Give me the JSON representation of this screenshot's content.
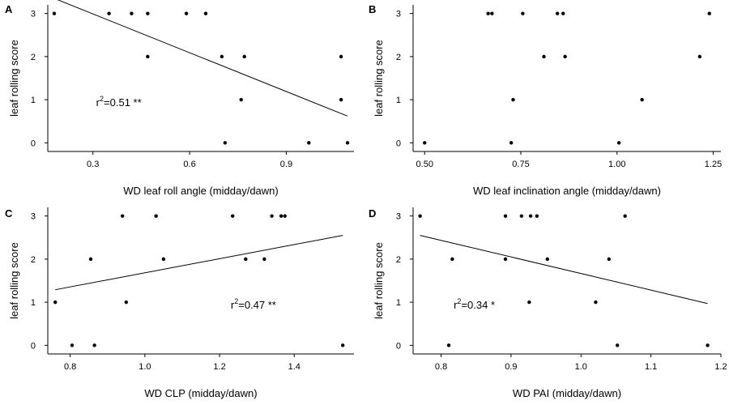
{
  "chart_data": [
    {
      "panel": "A",
      "type": "scatter",
      "xlabel": "WD leaf roll angle (midday/dawn)",
      "ylabel": "leaf rolling score",
      "xlim": [
        0.16,
        1.11
      ],
      "ylim": [
        -0.2,
        3.2
      ],
      "xticks": [
        0.3,
        0.6,
        0.9
      ],
      "xtick_labels": [
        "0.3",
        "0.6",
        "0.9"
      ],
      "yticks": [
        0,
        1,
        2,
        3
      ],
      "ytick_labels": [
        "0",
        "1",
        "2",
        "3"
      ],
      "points": [
        {
          "x": 0.18,
          "y": 3
        },
        {
          "x": 0.35,
          "y": 3
        },
        {
          "x": 0.42,
          "y": 3
        },
        {
          "x": 0.47,
          "y": 3
        },
        {
          "x": 0.59,
          "y": 3
        },
        {
          "x": 0.65,
          "y": 3
        },
        {
          "x": 0.47,
          "y": 2
        },
        {
          "x": 0.7,
          "y": 2
        },
        {
          "x": 0.77,
          "y": 2
        },
        {
          "x": 1.07,
          "y": 2
        },
        {
          "x": 0.76,
          "y": 1
        },
        {
          "x": 1.07,
          "y": 1
        },
        {
          "x": 0.71,
          "y": 0
        },
        {
          "x": 0.97,
          "y": 0
        },
        {
          "x": 1.09,
          "y": 0
        }
      ],
      "fit": {
        "x": [
          0.18,
          1.09
        ],
        "y": [
          3.35,
          0.62
        ]
      },
      "annotation": {
        "text_base": "r",
        "superscript": "2",
        "text_rest": "=0.51 **",
        "x": 0.31,
        "y": 0.95
      }
    },
    {
      "panel": "B",
      "type": "scatter",
      "xlabel": "WD leaf inclination angle (midday/dawn)",
      "ylabel": "leaf rolling score",
      "xlim": [
        0.47,
        1.27
      ],
      "ylim": [
        -0.2,
        3.2
      ],
      "xticks": [
        0.5,
        0.75,
        1.0,
        1.25
      ],
      "xtick_labels": [
        "0.50",
        "0.75",
        "1.00",
        "1.25"
      ],
      "yticks": [
        0,
        1,
        2,
        3
      ],
      "ytick_labels": [
        "0",
        "1",
        "2",
        "3"
      ],
      "points": [
        {
          "x": 0.665,
          "y": 3
        },
        {
          "x": 0.675,
          "y": 3
        },
        {
          "x": 0.755,
          "y": 3
        },
        {
          "x": 0.845,
          "y": 3
        },
        {
          "x": 0.86,
          "y": 3
        },
        {
          "x": 1.24,
          "y": 3
        },
        {
          "x": 0.81,
          "y": 2
        },
        {
          "x": 0.865,
          "y": 2
        },
        {
          "x": 1.215,
          "y": 2
        },
        {
          "x": 0.73,
          "y": 1
        },
        {
          "x": 1.065,
          "y": 1
        },
        {
          "x": 0.5,
          "y": 0
        },
        {
          "x": 0.725,
          "y": 0
        },
        {
          "x": 1.005,
          "y": 0
        }
      ]
    },
    {
      "panel": "C",
      "type": "scatter",
      "xlabel": "WD CLP (midday/dawn)",
      "ylabel": "leaf rolling score",
      "xlim": [
        0.74,
        1.56
      ],
      "ylim": [
        -0.2,
        3.2
      ],
      "xticks": [
        0.8,
        1.0,
        1.2,
        1.4
      ],
      "xtick_labels": [
        "0.8",
        "1.0",
        "1.2",
        "1.4"
      ],
      "yticks": [
        0,
        1,
        2,
        3
      ],
      "ytick_labels": [
        "0",
        "1",
        "2",
        "3"
      ],
      "points": [
        {
          "x": 0.94,
          "y": 3
        },
        {
          "x": 1.03,
          "y": 3
        },
        {
          "x": 1.235,
          "y": 3
        },
        {
          "x": 1.34,
          "y": 3
        },
        {
          "x": 1.365,
          "y": 3
        },
        {
          "x": 1.375,
          "y": 3
        },
        {
          "x": 0.855,
          "y": 2
        },
        {
          "x": 1.05,
          "y": 2
        },
        {
          "x": 1.27,
          "y": 2
        },
        {
          "x": 1.32,
          "y": 2
        },
        {
          "x": 0.76,
          "y": 1
        },
        {
          "x": 0.95,
          "y": 1
        },
        {
          "x": 0.805,
          "y": 0
        },
        {
          "x": 0.865,
          "y": 0
        },
        {
          "x": 1.53,
          "y": 0
        }
      ],
      "fit": {
        "x": [
          0.76,
          1.53
        ],
        "y": [
          1.29,
          2.55
        ]
      },
      "annotation": {
        "text_base": "r",
        "superscript": "2",
        "text_rest": "=0.47 **",
        "x": 1.23,
        "y": 0.95
      }
    },
    {
      "panel": "D",
      "type": "scatter",
      "xlabel": "WD PAI (midday/dawn)",
      "ylabel": "leaf rolling score",
      "xlim": [
        0.76,
        1.2
      ],
      "ylim": [
        -0.2,
        3.2
      ],
      "xticks": [
        0.8,
        0.9,
        1.0,
        1.1,
        1.2
      ],
      "xtick_labels": [
        "0.8",
        "0.9",
        "1.0",
        "1.1",
        "1.2"
      ],
      "yticks": [
        0,
        1,
        2,
        3
      ],
      "ytick_labels": [
        "0",
        "1",
        "2",
        "3"
      ],
      "points": [
        {
          "x": 0.77,
          "y": 3
        },
        {
          "x": 0.892,
          "y": 3
        },
        {
          "x": 0.915,
          "y": 3
        },
        {
          "x": 0.928,
          "y": 3
        },
        {
          "x": 0.937,
          "y": 3
        },
        {
          "x": 1.063,
          "y": 3
        },
        {
          "x": 0.816,
          "y": 2
        },
        {
          "x": 0.892,
          "y": 2
        },
        {
          "x": 0.952,
          "y": 2
        },
        {
          "x": 1.04,
          "y": 2
        },
        {
          "x": 0.926,
          "y": 1
        },
        {
          "x": 1.021,
          "y": 1
        },
        {
          "x": 0.811,
          "y": 0
        },
        {
          "x": 1.052,
          "y": 0
        },
        {
          "x": 1.181,
          "y": 0
        }
      ],
      "fit": {
        "x": [
          0.77,
          1.181
        ],
        "y": [
          2.55,
          0.97
        ]
      },
      "annotation": {
        "text_base": "r",
        "superscript": "2",
        "text_rest": "=0.34 *",
        "x": 0.818,
        "y": 0.95
      }
    }
  ]
}
